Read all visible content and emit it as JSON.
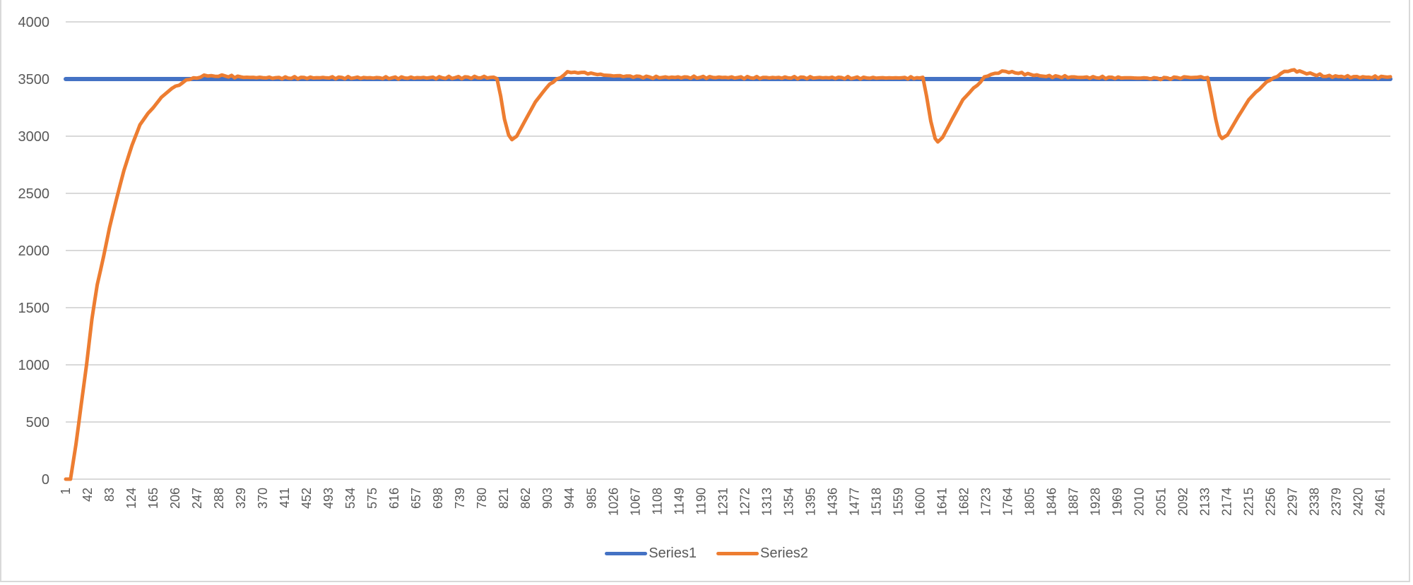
{
  "chart_data": {
    "type": "line",
    "title": "",
    "xlabel": "",
    "ylabel": "",
    "ylim": [
      0,
      4000
    ],
    "yticks": [
      0,
      500,
      1000,
      1500,
      2000,
      2500,
      3000,
      3500,
      4000
    ],
    "xlim": [
      1,
      2480
    ],
    "xtick_labels": [
      "1",
      "42",
      "83",
      "124",
      "165",
      "206",
      "247",
      "288",
      "329",
      "370",
      "411",
      "452",
      "493",
      "534",
      "575",
      "616",
      "657",
      "698",
      "739",
      "780",
      "821",
      "862",
      "903",
      "944",
      "985",
      "1026",
      "1067",
      "1108",
      "1149",
      "1190",
      "1231",
      "1272",
      "1313",
      "1354",
      "1395",
      "1436",
      "1477",
      "1518",
      "1559",
      "1600",
      "1641",
      "1682",
      "1723",
      "1764",
      "1805",
      "1846",
      "1887",
      "1928",
      "1969",
      "2010",
      "2051",
      "2092",
      "2133",
      "2174",
      "2215",
      "2256",
      "2297",
      "2338",
      "2379",
      "2420",
      "2461"
    ],
    "grid": "horizontal",
    "legend_position": "bottom",
    "series": [
      {
        "name": "Series1",
        "color": "#4472c4",
        "points": [
          [
            1,
            3500
          ],
          [
            2480,
            3500
          ]
        ]
      },
      {
        "name": "Series2",
        "color": "#ed7d31",
        "points": [
          [
            1,
            0
          ],
          [
            10,
            0
          ],
          [
            20,
            300
          ],
          [
            30,
            650
          ],
          [
            40,
            1000
          ],
          [
            50,
            1400
          ],
          [
            60,
            1700
          ],
          [
            72,
            1950
          ],
          [
            83,
            2200
          ],
          [
            96,
            2450
          ],
          [
            110,
            2700
          ],
          [
            125,
            2920
          ],
          [
            140,
            3100
          ],
          [
            155,
            3200
          ],
          [
            165,
            3250
          ],
          [
            180,
            3340
          ],
          [
            200,
            3420
          ],
          [
            220,
            3470
          ],
          [
            240,
            3510
          ],
          [
            260,
            3525
          ],
          [
            280,
            3530
          ],
          [
            300,
            3525
          ],
          [
            340,
            3515
          ],
          [
            400,
            3510
          ],
          [
            500,
            3512
          ],
          [
            600,
            3510
          ],
          [
            700,
            3512
          ],
          [
            790,
            3515
          ],
          [
            808,
            3510
          ],
          [
            815,
            3350
          ],
          [
            822,
            3150
          ],
          [
            830,
            3010
          ],
          [
            836,
            2970
          ],
          [
            845,
            3000
          ],
          [
            860,
            3130
          ],
          [
            880,
            3300
          ],
          [
            900,
            3420
          ],
          [
            920,
            3500
          ],
          [
            940,
            3555
          ],
          [
            960,
            3560
          ],
          [
            990,
            3545
          ],
          [
            1020,
            3530
          ],
          [
            1100,
            3515
          ],
          [
            1200,
            3515
          ],
          [
            1300,
            3512
          ],
          [
            1400,
            3512
          ],
          [
            1500,
            3510
          ],
          [
            1560,
            3510
          ],
          [
            1605,
            3510
          ],
          [
            1612,
            3350
          ],
          [
            1620,
            3130
          ],
          [
            1628,
            2980
          ],
          [
            1633,
            2950
          ],
          [
            1642,
            2990
          ],
          [
            1660,
            3150
          ],
          [
            1680,
            3320
          ],
          [
            1700,
            3420
          ],
          [
            1720,
            3510
          ],
          [
            1740,
            3555
          ],
          [
            1760,
            3565
          ],
          [
            1790,
            3550
          ],
          [
            1830,
            3525
          ],
          [
            1900,
            3515
          ],
          [
            2000,
            3510
          ],
          [
            2050,
            3505
          ],
          [
            2100,
            3515
          ],
          [
            2138,
            3515
          ],
          [
            2145,
            3350
          ],
          [
            2153,
            3150
          ],
          [
            2160,
            3010
          ],
          [
            2165,
            2980
          ],
          [
            2175,
            3010
          ],
          [
            2195,
            3170
          ],
          [
            2215,
            3320
          ],
          [
            2235,
            3420
          ],
          [
            2255,
            3490
          ],
          [
            2275,
            3550
          ],
          [
            2295,
            3575
          ],
          [
            2310,
            3570
          ],
          [
            2330,
            3545
          ],
          [
            2360,
            3525
          ],
          [
            2400,
            3520
          ],
          [
            2440,
            3515
          ],
          [
            2480,
            3520
          ]
        ]
      }
    ]
  },
  "legend": {
    "items": [
      {
        "label": "Series1",
        "color": "#4472c4"
      },
      {
        "label": "Series2",
        "color": "#ed7d31"
      }
    ]
  }
}
